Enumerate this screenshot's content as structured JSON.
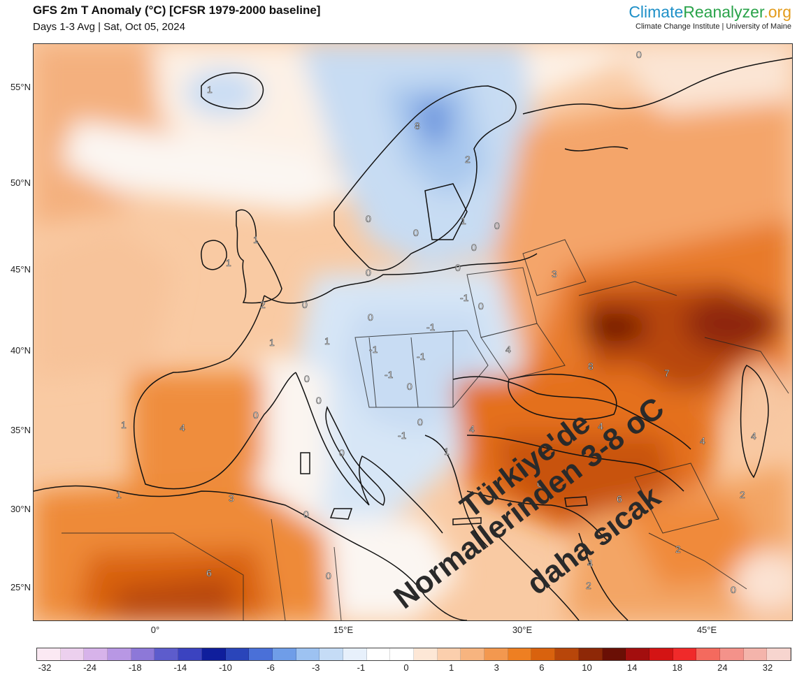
{
  "header": {
    "title": "GFS 2m T Anomaly (°C) [CFSR 1979-2000 baseline]",
    "subtitle": "Days 1-3 Avg | Sat, Oct 05, 2024",
    "brand_part1": "Climate",
    "brand_part2": "Reanalyzer",
    "brand_part3": ".org",
    "brand_tagline": "Climate Change Institute | University of Maine"
  },
  "map": {
    "lat_labels": [
      "55°N",
      "50°N",
      "45°N",
      "40°N",
      "35°N",
      "30°N",
      "25°N"
    ],
    "lon_labels": [
      "0°",
      "15°E",
      "30°E",
      "45°E"
    ],
    "contour_labels": [
      "1",
      "8",
      "2",
      "0",
      "0",
      "0",
      "0",
      "1",
      "0",
      "0",
      "0",
      "1",
      "1",
      "2",
      "0",
      "0",
      "-1",
      "0",
      "-1",
      "1",
      "1",
      "-1",
      "-1",
      "3",
      "4",
      "8",
      "7",
      "0",
      "-1",
      "0",
      "0",
      "0",
      "1",
      "4",
      "0",
      "4",
      "4",
      "4",
      "4",
      "1",
      "-1",
      "0",
      "1",
      "3",
      "0",
      "0",
      "6",
      "2",
      "2",
      "6",
      "0",
      "4",
      "2",
      "0"
    ],
    "annotation": {
      "line1": "Türkiye'de",
      "line2": "Normallerinden 3-8 oC",
      "line3": "daha sıcak"
    }
  },
  "colorbar": {
    "labels": [
      "-32",
      "-24",
      "-18",
      "-14",
      "-10",
      "-6",
      "-3",
      "-1",
      "0",
      "1",
      "3",
      "6",
      "10",
      "14",
      "18",
      "24",
      "32"
    ],
    "colors": [
      "#fbe9f3",
      "#ecd0ee",
      "#d7b3ea",
      "#b897e4",
      "#8d78d8",
      "#5d5ccc",
      "#3b43c0",
      "#0f1e9c",
      "#2a45ba",
      "#4a70d8",
      "#6f9de8",
      "#9dc2f1",
      "#c5dcf6",
      "#e7f0fb",
      "#ffffff",
      "#ffffff",
      "#fde7d6",
      "#fbcfad",
      "#f7b47f",
      "#f3984f",
      "#ee7f22",
      "#d9620e",
      "#b8460a",
      "#8e2807",
      "#6a0f05",
      "#a30e0e",
      "#d41414",
      "#f02a2a",
      "#f46a5e",
      "#f4928a",
      "#f4b4ab",
      "#f7d5cf"
    ]
  }
}
